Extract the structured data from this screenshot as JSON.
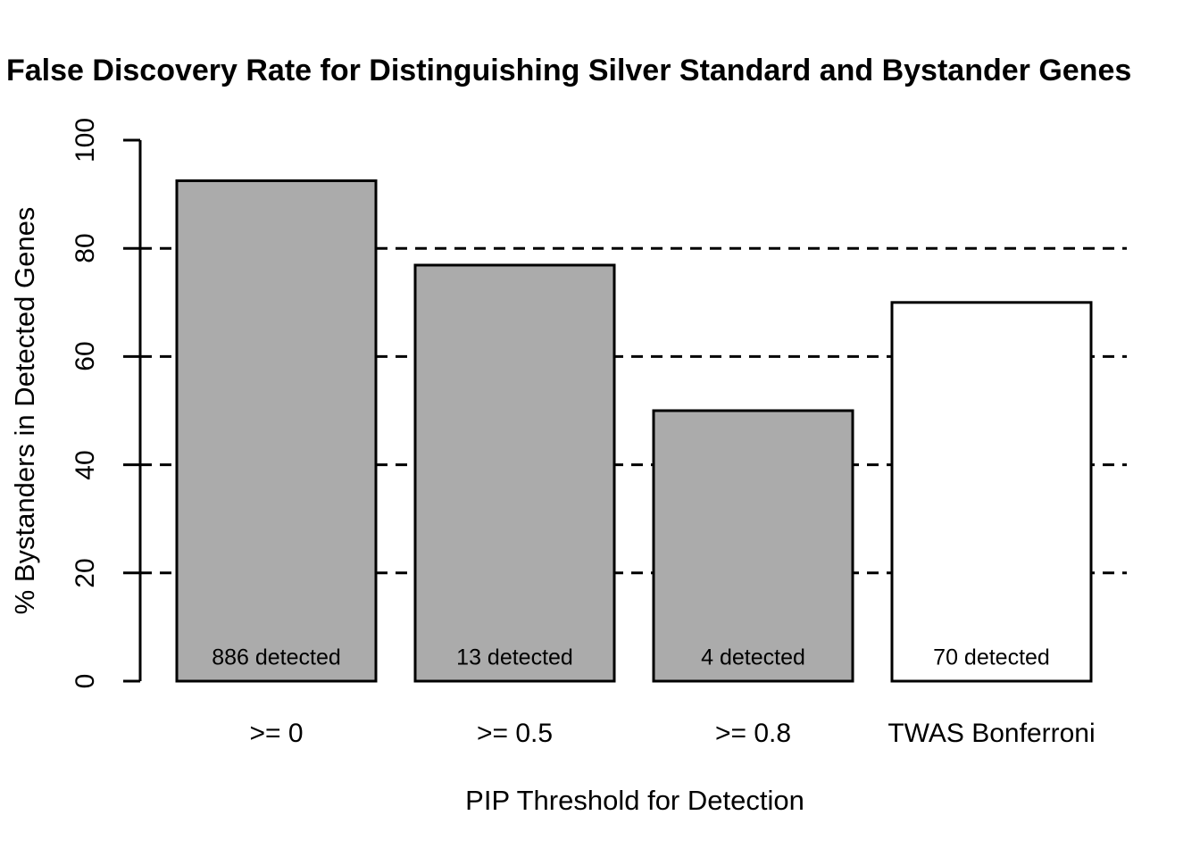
{
  "title": "False Discovery Rate for Distinguishing Silver Standard and Bystander Genes",
  "y_axis": {
    "label": "% Bystanders in Detected Genes",
    "ticks": [
      0,
      20,
      40,
      60,
      80,
      100
    ],
    "range": [
      0,
      100
    ]
  },
  "x_axis": {
    "label": "PIP Threshold for Detection"
  },
  "colors": {
    "background": "#ffffff",
    "bar_gray": "#ababab",
    "bar_white": "#ffffff",
    "stroke": "#000000"
  },
  "chart_data": {
    "type": "bar",
    "title": "False Discovery Rate for Distinguishing Silver Standard and Bystander Genes",
    "xlabel": "PIP Threshold for Detection",
    "ylabel": "% Bystanders in Detected Genes",
    "ylim": [
      0,
      100
    ],
    "yticks": [
      0,
      20,
      40,
      60,
      80,
      100
    ],
    "grid": "horizontal dashed lines at 20, 40, 60, 80 drawn behind bars",
    "legend": "none",
    "categories": [
      ">= 0",
      ">= 0.5",
      ">= 0.8",
      "TWAS Bonferroni"
    ],
    "values": [
      92.5,
      76.9,
      50,
      70
    ],
    "bar_annotations": [
      "886 detected",
      "13 detected",
      "4 detected",
      "70 detected"
    ],
    "bar_colors": [
      "#ababab",
      "#ababab",
      "#ababab",
      "#ffffff"
    ]
  }
}
